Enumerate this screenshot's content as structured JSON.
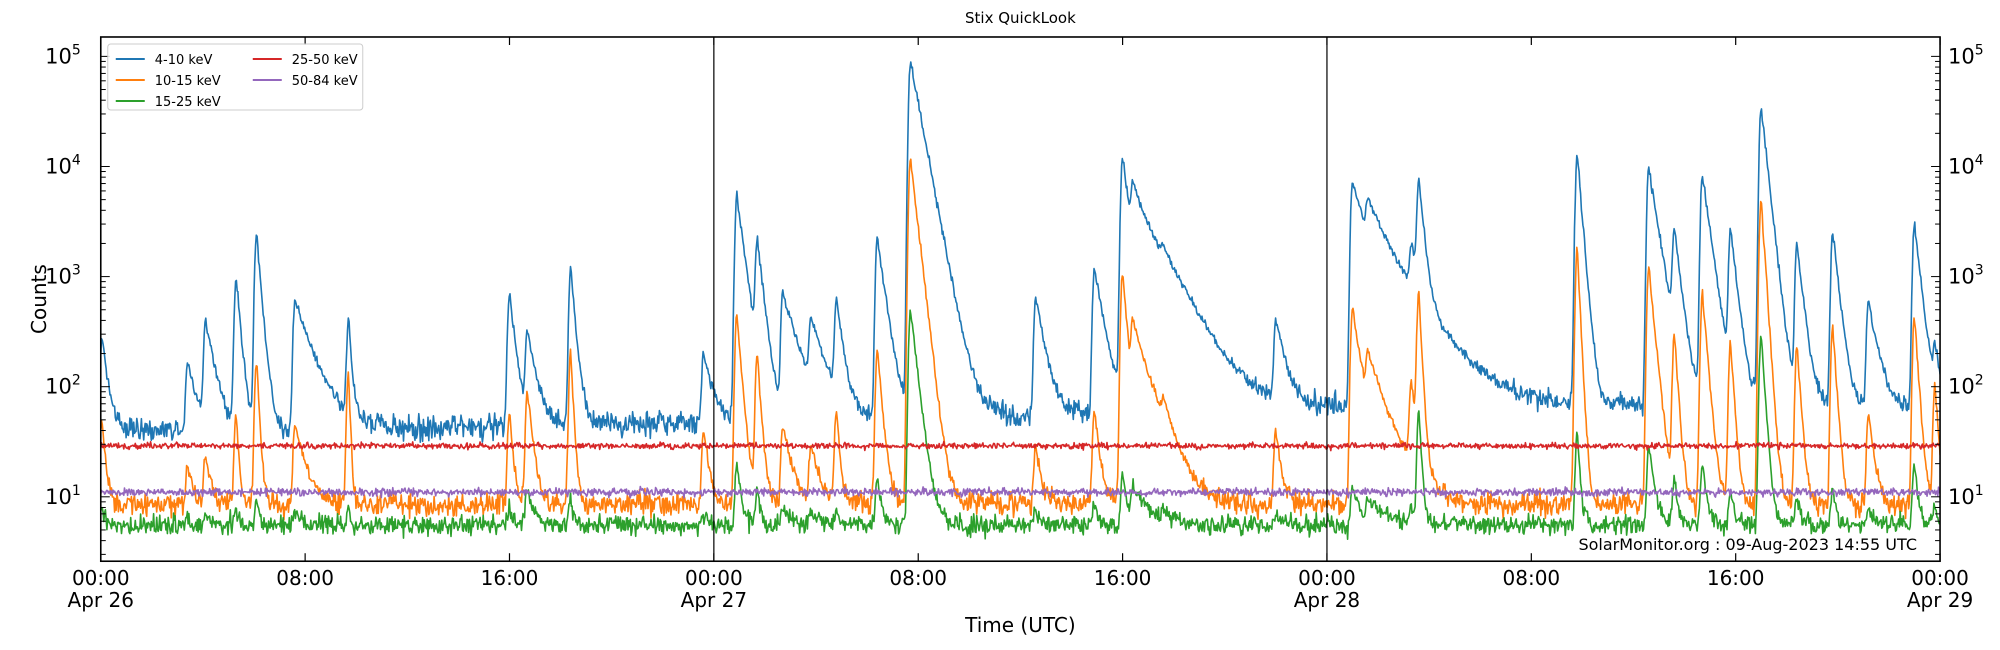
{
  "chart_data": {
    "type": "line",
    "title": "Stix QuickLook",
    "xlabel": "Time (UTC)",
    "ylabel": "Counts",
    "yscale": "log",
    "ylim": [
      2.6,
      150000
    ],
    "xlim_hours": [
      0,
      72
    ],
    "x_ticks": [
      {
        "hour": 0,
        "label": "00:00",
        "date": "Apr 26"
      },
      {
        "hour": 8,
        "label": "08:00",
        "date": ""
      },
      {
        "hour": 16,
        "label": "16:00",
        "date": ""
      },
      {
        "hour": 24,
        "label": "00:00",
        "date": "Apr 27"
      },
      {
        "hour": 32,
        "label": "08:00",
        "date": ""
      },
      {
        "hour": 40,
        "label": "16:00",
        "date": ""
      },
      {
        "hour": 48,
        "label": "00:00",
        "date": "Apr 28"
      },
      {
        "hour": 56,
        "label": "08:00",
        "date": ""
      },
      {
        "hour": 64,
        "label": "16:00",
        "date": ""
      },
      {
        "hour": 72,
        "label": "00:00",
        "date": "Apr 29"
      }
    ],
    "y_ticks": [
      {
        "value": 10,
        "base": "10",
        "exp": "1"
      },
      {
        "value": 100,
        "base": "10",
        "exp": "2"
      },
      {
        "value": 1000,
        "base": "10",
        "exp": "3"
      },
      {
        "value": 10000,
        "base": "10",
        "exp": "4"
      },
      {
        "value": 100000,
        "base": "10",
        "exp": "5"
      }
    ],
    "day_boundaries_hours": [
      24,
      48
    ],
    "legend_position": "top-left",
    "grid": false,
    "series": [
      {
        "name": "4-10 keV",
        "color": "#1f77b4",
        "background": [
          [
            0,
            40
          ],
          [
            12,
            42
          ],
          [
            24,
            48
          ],
          [
            36,
            55
          ],
          [
            48,
            65
          ],
          [
            60,
            70
          ],
          [
            72,
            65
          ]
        ],
        "noise": 0.12
      },
      {
        "name": "10-15 keV",
        "color": "#ff7f0e",
        "background": [
          [
            0,
            8.5
          ],
          [
            72,
            8.5
          ]
        ],
        "noise": 0.12
      },
      {
        "name": "15-25 keV",
        "color": "#2ca02c",
        "background": [
          [
            0,
            5.5
          ],
          [
            72,
            5.6
          ]
        ],
        "noise": 0.1
      },
      {
        "name": "25-50 keV",
        "color": "#d62728",
        "background": [
          [
            0,
            29
          ],
          [
            72,
            29
          ]
        ],
        "noise": 0.03
      },
      {
        "name": "50-84 keV",
        "color": "#9467bd",
        "background": [
          [
            0,
            11
          ],
          [
            72,
            11
          ]
        ],
        "noise": 0.04
      }
    ],
    "flares_columns": [
      "hour",
      "4-10 keV peak",
      "10-15 keV peak",
      "15-25 keV peak",
      "decay_hours"
    ],
    "flares": [
      [
        0.05,
        280,
        50,
        8,
        0.2
      ],
      [
        3.4,
        170,
        20,
        6,
        0.3
      ],
      [
        4.1,
        400,
        25,
        7,
        0.3
      ],
      [
        5.3,
        1000,
        60,
        8,
        0.15
      ],
      [
        6.1,
        2500,
        180,
        10,
        0.15
      ],
      [
        7.6,
        600,
        45,
        7,
        0.6
      ],
      [
        9.7,
        400,
        140,
        8,
        0.1
      ],
      [
        16.0,
        700,
        60,
        8,
        0.2
      ],
      [
        16.7,
        300,
        90,
        12,
        0.3
      ],
      [
        18.4,
        1200,
        200,
        10,
        0.15
      ],
      [
        23.6,
        200,
        40,
        7,
        0.3
      ],
      [
        24.9,
        5300,
        450,
        20,
        0.25
      ],
      [
        25.7,
        2000,
        200,
        12,
        0.2
      ],
      [
        26.7,
        700,
        45,
        8,
        0.5
      ],
      [
        27.8,
        350,
        30,
        7,
        0.5
      ],
      [
        28.8,
        600,
        60,
        8,
        0.2
      ],
      [
        30.4,
        2300,
        220,
        15,
        0.25
      ],
      [
        31.7,
        90000,
        12000,
        500,
        0.35
      ],
      [
        36.6,
        650,
        30,
        7,
        0.3
      ],
      [
        38.9,
        1200,
        60,
        8,
        0.3
      ],
      [
        40.0,
        12000,
        1100,
        17,
        0.25
      ],
      [
        40.4,
        5000,
        350,
        12,
        1.0
      ],
      [
        41.6,
        400,
        35,
        7,
        0.5
      ],
      [
        46.0,
        400,
        40,
        7,
        0.3
      ],
      [
        49.0,
        7500,
        500,
        12,
        0.5
      ],
      [
        49.6,
        3000,
        150,
        9,
        1.2
      ],
      [
        51.3,
        1200,
        100,
        8,
        0.3
      ],
      [
        51.6,
        7000,
        700,
        60,
        0.15
      ],
      [
        57.8,
        13000,
        1800,
        40,
        0.15
      ],
      [
        60.6,
        9500,
        1200,
        30,
        0.3
      ],
      [
        61.6,
        2500,
        300,
        15,
        0.2
      ],
      [
        62.7,
        8500,
        700,
        20,
        0.25
      ],
      [
        63.8,
        2700,
        250,
        12,
        0.2
      ],
      [
        65.0,
        35000,
        5000,
        300,
        0.2
      ],
      [
        66.4,
        2000,
        250,
        10,
        0.2
      ],
      [
        67.8,
        2500,
        350,
        12,
        0.2
      ],
      [
        69.2,
        600,
        60,
        8,
        0.3
      ],
      [
        71.0,
        3000,
        450,
        20,
        0.2
      ],
      [
        71.8,
        200,
        100,
        8,
        0.2
      ]
    ],
    "annotation": "SolarMonitor.org : 09-Aug-2023 14:55 UTC"
  }
}
